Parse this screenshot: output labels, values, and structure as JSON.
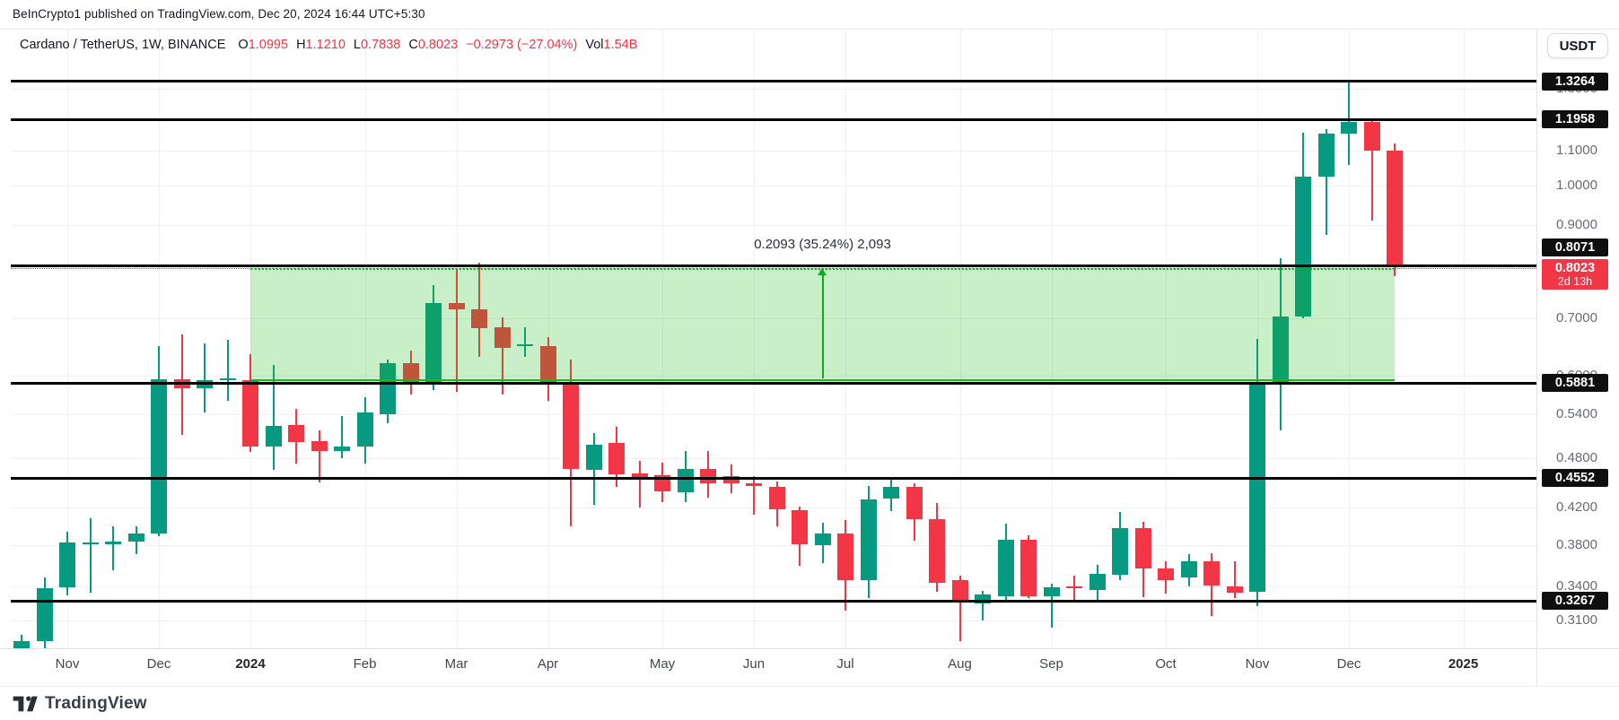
{
  "page": {
    "attribution": "BeInCrypto1 published on TradingView.com, Dec 20, 2024 16:44 UTC+5:30"
  },
  "legend": {
    "symbol": "Cardano / TetherUS, 1W, BINANCE",
    "items": [
      {
        "label": "O",
        "value": "1.0995"
      },
      {
        "label": "H",
        "value": "1.1210"
      },
      {
        "label": "L",
        "value": "0.7838"
      },
      {
        "label": "C",
        "value": "0.8023"
      }
    ],
    "change": "−0.2973 (−27.04%)",
    "vol_label": "Vol",
    "vol_value": "1.54B"
  },
  "toolbar": {
    "currency_label": "USDT"
  },
  "price_axis": {
    "ticks": [
      "1.3000",
      "1.1000",
      "1.0000",
      "0.9000",
      "0.7000",
      "0.6000",
      "0.5400",
      "0.4800",
      "0.4200",
      "0.3800",
      "0.3400",
      "0.3100"
    ],
    "level_badges": [
      "1.3264",
      "1.1958",
      "0.8071",
      "0.5881",
      "0.4552",
      "0.3267"
    ],
    "current_badge": {
      "price": "0.8023",
      "countdown": "2d 13h"
    }
  },
  "time_axis": {
    "labels": [
      {
        "text": "Nov",
        "week": 2,
        "bold": false
      },
      {
        "text": "Dec",
        "week": 6,
        "bold": false
      },
      {
        "text": "2024",
        "week": 10,
        "bold": true
      },
      {
        "text": "Feb",
        "week": 15,
        "bold": false
      },
      {
        "text": "Mar",
        "week": 19,
        "bold": false
      },
      {
        "text": "Apr",
        "week": 23,
        "bold": false
      },
      {
        "text": "May",
        "week": 28,
        "bold": false
      },
      {
        "text": "Jun",
        "week": 32,
        "bold": false
      },
      {
        "text": "Jul",
        "week": 36,
        "bold": false
      },
      {
        "text": "Aug",
        "week": 41,
        "bold": false
      },
      {
        "text": "Sep",
        "week": 45,
        "bold": false
      },
      {
        "text": "Oct",
        "week": 50,
        "bold": false
      },
      {
        "text": "Nov",
        "week": 54,
        "bold": false
      },
      {
        "text": "Dec",
        "week": 58,
        "bold": false
      },
      {
        "text": "2025",
        "week": 63,
        "bold": true
      }
    ]
  },
  "annotation": {
    "text": "0.2093 (35.24%) 2,093"
  },
  "footer": {
    "brand": "TradingView"
  },
  "colors": {
    "up": "#089981",
    "down": "#F23645",
    "level_line": "#000000",
    "current_line": "#F23645",
    "zone_fill": "rgba(30,190,30,0.24)",
    "zone_line": "#10c018",
    "grid": "#eef0f5",
    "axis_text": "#676b74",
    "badge_bg": "#0f0f0f",
    "badge_current_bg": "#F23645"
  },
  "chart_data": {
    "type": "candlestick",
    "title": "Cardano / TetherUS weekly candles on BINANCE",
    "interval": "1W",
    "scale": "log",
    "ylim": [
      0.2877,
      1.524
    ],
    "levels": [
      1.3264,
      1.1958,
      0.8071,
      0.5881,
      0.4552,
      0.3267
    ],
    "current_price": 0.8023,
    "zone": {
      "from_week": 10,
      "to_week": 60,
      "price_top": 0.8,
      "price_bottom": 0.593,
      "arrow_week": 35
    },
    "candles_columns": [
      "open",
      "high",
      "low",
      "close"
    ],
    "candles": [
      [
        0.2875,
        0.298,
        0.281,
        0.293
      ],
      [
        0.293,
        0.348,
        0.284,
        0.338
      ],
      [
        0.339,
        0.394,
        0.332,
        0.383
      ],
      [
        0.381,
        0.408,
        0.334,
        0.383
      ],
      [
        0.381,
        0.4,
        0.355,
        0.384
      ],
      [
        0.384,
        0.4,
        0.371,
        0.392
      ],
      [
        0.392,
        0.649,
        0.389,
        0.594
      ],
      [
        0.594,
        0.67,
        0.511,
        0.58
      ],
      [
        0.58,
        0.654,
        0.543,
        0.592
      ],
      [
        0.592,
        0.66,
        0.561,
        0.596
      ],
      [
        0.592,
        0.636,
        0.488,
        0.495
      ],
      [
        0.495,
        0.617,
        0.465,
        0.524
      ],
      [
        0.525,
        0.548,
        0.473,
        0.501
      ],
      [
        0.503,
        0.518,
        0.45,
        0.49
      ],
      [
        0.489,
        0.538,
        0.48,
        0.495
      ],
      [
        0.495,
        0.566,
        0.473,
        0.543
      ],
      [
        0.54,
        0.627,
        0.527,
        0.62
      ],
      [
        0.62,
        0.642,
        0.57,
        0.588
      ],
      [
        0.588,
        0.766,
        0.577,
        0.729
      ],
      [
        0.729,
        0.8,
        0.574,
        0.717
      ],
      [
        0.718,
        0.813,
        0.631,
        0.681
      ],
      [
        0.683,
        0.701,
        0.57,
        0.647
      ],
      [
        0.65,
        0.684,
        0.631,
        0.652
      ],
      [
        0.65,
        0.666,
        0.56,
        0.59
      ],
      [
        0.588,
        0.626,
        0.4,
        0.466
      ],
      [
        0.465,
        0.514,
        0.423,
        0.498
      ],
      [
        0.5,
        0.522,
        0.444,
        0.46
      ],
      [
        0.461,
        0.477,
        0.42,
        0.456
      ],
      [
        0.459,
        0.475,
        0.427,
        0.439
      ],
      [
        0.438,
        0.49,
        0.427,
        0.466
      ],
      [
        0.466,
        0.49,
        0.432,
        0.449
      ],
      [
        0.458,
        0.472,
        0.437,
        0.449
      ],
      [
        0.449,
        0.458,
        0.412,
        0.445
      ],
      [
        0.445,
        0.451,
        0.4,
        0.418
      ],
      [
        0.417,
        0.421,
        0.359,
        0.381
      ],
      [
        0.38,
        0.404,
        0.362,
        0.392
      ],
      [
        0.392,
        0.406,
        0.318,
        0.346
      ],
      [
        0.346,
        0.446,
        0.329,
        0.43
      ],
      [
        0.431,
        0.457,
        0.416,
        0.445
      ],
      [
        0.444,
        0.449,
        0.384,
        0.407
      ],
      [
        0.407,
        0.426,
        0.335,
        0.343
      ],
      [
        0.346,
        0.35,
        0.293,
        0.328
      ],
      [
        0.325,
        0.336,
        0.31,
        0.333
      ],
      [
        0.331,
        0.403,
        0.327,
        0.385
      ],
      [
        0.385,
        0.39,
        0.329,
        0.331
      ],
      [
        0.331,
        0.342,
        0.304,
        0.339
      ],
      [
        0.34,
        0.35,
        0.327,
        0.338
      ],
      [
        0.337,
        0.36,
        0.327,
        0.352
      ],
      [
        0.351,
        0.415,
        0.346,
        0.398
      ],
      [
        0.398,
        0.405,
        0.33,
        0.357
      ],
      [
        0.357,
        0.364,
        0.333,
        0.346
      ],
      [
        0.348,
        0.371,
        0.34,
        0.364
      ],
      [
        0.364,
        0.372,
        0.314,
        0.341
      ],
      [
        0.34,
        0.364,
        0.329,
        0.334
      ],
      [
        0.335,
        0.662,
        0.322,
        0.589
      ],
      [
        0.589,
        0.823,
        0.518,
        0.704
      ],
      [
        0.704,
        1.155,
        0.7,
        1.025
      ],
      [
        1.025,
        1.166,
        0.876,
        1.152
      ],
      [
        1.152,
        1.3264,
        1.059,
        1.188
      ],
      [
        1.188,
        1.195,
        0.911,
        1.101
      ],
      [
        1.0995,
        1.121,
        0.7838,
        0.8023
      ]
    ]
  }
}
